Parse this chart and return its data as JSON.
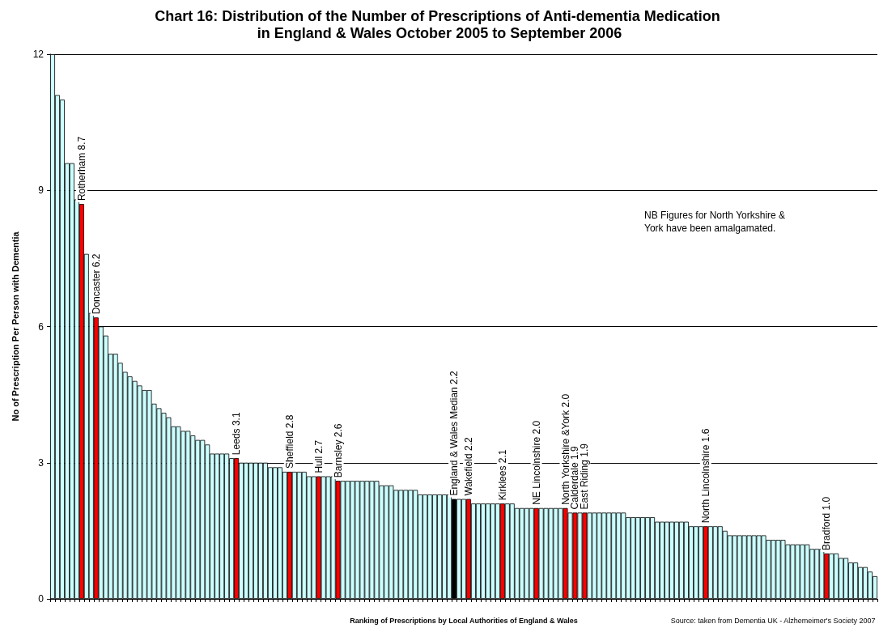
{
  "chart_data": {
    "type": "bar",
    "title": "Chart 16: Distribution of the Number of Prescriptions of Anti-dementia Medication in England & Wales October 2005 to September 2006",
    "xlabel": "Ranking of Prescriptions by Local Authorities of England & Wales",
    "ylabel": "No of Prescription Per Person with Dementia",
    "annotations": [
      "NB Figures for North Yorkshire & York have been amalgamated.",
      "Source: taken from Dementia UK - Alzhemeimer's Society 2007"
    ],
    "categories": [
      null,
      null,
      null,
      null,
      null,
      null,
      null,
      null,
      null,
      null,
      null,
      null,
      null,
      null,
      null,
      null,
      null,
      null,
      null,
      null,
      null,
      null,
      null,
      null,
      null,
      null,
      null,
      null,
      null,
      null,
      null,
      null,
      null,
      null,
      null,
      null,
      null,
      null,
      null,
      null,
      null,
      null,
      null,
      null,
      null,
      null,
      null,
      null,
      null,
      null,
      null,
      null,
      null,
      null,
      null,
      null,
      null,
      null,
      null,
      null,
      null,
      null,
      null,
      null,
      null,
      null,
      null,
      null,
      null,
      null,
      null,
      null,
      null,
      null,
      null,
      null,
      null,
      null,
      null,
      null,
      null,
      null,
      null,
      null,
      null,
      null,
      null,
      null,
      null,
      null,
      null,
      null,
      null,
      null,
      null,
      null,
      null,
      null,
      null,
      null,
      null,
      null,
      null,
      null,
      null,
      null,
      null,
      null,
      null,
      null,
      null,
      null,
      null,
      null,
      null,
      null,
      null,
      null,
      null,
      null,
      null,
      null,
      null,
      null,
      null,
      null,
      null,
      null,
      null,
      null,
      null,
      null,
      null,
      null,
      null,
      null,
      null,
      null,
      null,
      null,
      null,
      null,
      null,
      null,
      null,
      null,
      null,
      null,
      null,
      null,
      null,
      null,
      null,
      null,
      null,
      null,
      null,
      null,
      null,
      null,
      null,
      null,
      null,
      null,
      null,
      null,
      null,
      null,
      null,
      null,
      null
    ],
    "values": [
      12,
      11.1,
      11.0,
      9.6,
      9.6,
      8.8,
      8.7,
      7.6,
      6.3,
      6.2,
      6.0,
      5.8,
      5.4,
      5.4,
      5.2,
      5.0,
      4.9,
      4.8,
      4.7,
      4.6,
      4.6,
      4.3,
      4.2,
      4.1,
      4.0,
      3.8,
      3.8,
      3.7,
      3.7,
      3.6,
      3.5,
      3.5,
      3.4,
      3.2,
      3.2,
      3.2,
      3.2,
      3.1,
      3.1,
      3.0,
      3.0,
      3.0,
      3.0,
      3.0,
      3.0,
      2.9,
      2.9,
      2.9,
      2.8,
      2.8,
      2.8,
      2.8,
      2.8,
      2.7,
      2.7,
      2.7,
      2.7,
      2.7,
      2.7,
      2.6,
      2.6,
      2.6,
      2.6,
      2.6,
      2.6,
      2.6,
      2.6,
      2.6,
      2.5,
      2.5,
      2.5,
      2.4,
      2.4,
      2.4,
      2.4,
      2.4,
      2.3,
      2.3,
      2.3,
      2.3,
      2.3,
      2.3,
      2.3,
      2.2,
      2.2,
      2.2,
      2.2,
      2.1,
      2.1,
      2.1,
      2.1,
      2.1,
      2.1,
      2.1,
      2.1,
      2.1,
      2.0,
      2.0,
      2.0,
      2.0,
      2.0,
      2.0,
      2.0,
      2.0,
      2.0,
      2.0,
      2.0,
      1.9,
      1.9,
      1.9,
      1.9,
      1.9,
      1.9,
      1.9,
      1.9,
      1.9,
      1.9,
      1.9,
      1.9,
      1.8,
      1.8,
      1.8,
      1.8,
      1.8,
      1.8,
      1.7,
      1.7,
      1.7,
      1.7,
      1.7,
      1.7,
      1.7,
      1.6,
      1.6,
      1.6,
      1.6,
      1.6,
      1.6,
      1.6,
      1.5,
      1.4,
      1.4,
      1.4,
      1.4,
      1.4,
      1.4,
      1.4,
      1.4,
      1.3,
      1.3,
      1.3,
      1.3,
      1.2,
      1.2,
      1.2,
      1.2,
      1.2,
      1.1,
      1.1,
      1.1,
      1.0,
      1.0,
      1.0,
      0.9,
      0.9,
      0.8,
      0.8,
      0.7,
      0.7,
      0.6,
      0.5
    ],
    "colors": [
      "#ccffff",
      "#ccffff",
      "#ccffff",
      "#ccffff",
      "#ccffff",
      "#ccffff",
      "#ff0000",
      "#ccffff",
      "#ccffff",
      "#ff0000",
      "#ccffff",
      "#ccffff",
      "#ccffff",
      "#ccffff",
      "#ccffff",
      "#ccffff",
      "#ccffff",
      "#ccffff",
      "#ccffff",
      "#ccffff",
      "#ccffff",
      "#ccffff",
      "#ccffff",
      "#ccffff",
      "#ccffff",
      "#ccffff",
      "#ccffff",
      "#ccffff",
      "#ccffff",
      "#ccffff",
      "#ccffff",
      "#ccffff",
      "#ccffff",
      "#ccffff",
      "#ccffff",
      "#ccffff",
      "#ccffff",
      "#ccffff",
      "#ff0000",
      "#ccffff",
      "#ccffff",
      "#ccffff",
      "#ccffff",
      "#ccffff",
      "#ccffff",
      "#ccffff",
      "#ccffff",
      "#ccffff",
      "#ccffff",
      "#ff0000",
      "#ccffff",
      "#ccffff",
      "#ccffff",
      "#ccffff",
      "#ccffff",
      "#ff0000",
      "#ccffff",
      "#ccffff",
      "#ccffff",
      "#ff0000",
      "#ccffff",
      "#ccffff",
      "#ccffff",
      "#ccffff",
      "#ccffff",
      "#ccffff",
      "#ccffff",
      "#ccffff",
      "#ccffff",
      "#ccffff",
      "#ccffff",
      "#ccffff",
      "#ccffff",
      "#ccffff",
      "#ccffff",
      "#ccffff",
      "#ccffff",
      "#ccffff",
      "#ccffff",
      "#ccffff",
      "#ccffff",
      "#ccffff",
      "#ccffff",
      "#000000",
      "#ccffff",
      "#ccffff",
      "#ff0000",
      "#ccffff",
      "#ccffff",
      "#ccffff",
      "#ccffff",
      "#ccffff",
      "#ccffff",
      "#ff0000",
      "#ccffff",
      "#ccffff",
      "#ccffff",
      "#ccffff",
      "#ccffff",
      "#ccffff",
      "#ff0000",
      "#ccffff",
      "#ccffff",
      "#ccffff",
      "#ccffff",
      "#ccffff",
      "#ff0000",
      "#ccffff",
      "#ff0000",
      "#ccffff",
      "#ff0000",
      "#ccffff",
      "#ccffff",
      "#ccffff",
      "#ccffff",
      "#ccffff",
      "#ccffff",
      "#ccffff",
      "#ccffff",
      "#ccffff",
      "#ccffff",
      "#ccffff",
      "#ccffff",
      "#ccffff",
      "#ccffff",
      "#ccffff",
      "#ccffff",
      "#ccffff",
      "#ccffff",
      "#ccffff",
      "#ccffff",
      "#ccffff",
      "#ccffff",
      "#ccffff",
      "#ccffff",
      "#ff0000",
      "#ccffff",
      "#ccffff",
      "#ccffff",
      "#ccffff",
      "#ccffff",
      "#ccffff",
      "#ccffff",
      "#ccffff",
      "#ccffff",
      "#ccffff",
      "#ccffff",
      "#ccffff",
      "#ccffff",
      "#ccffff",
      "#ccffff",
      "#ccffff",
      "#ccffff",
      "#ccffff",
      "#ccffff",
      "#ccffff",
      "#ccffff",
      "#ccffff",
      "#ccffff",
      "#ccffff",
      "#ff0000",
      "#ccffff",
      "#ccffff",
      "#ccffff",
      "#ccffff",
      "#ccffff",
      "#ccffff",
      "#ccffff",
      "#ccffff",
      "#ccffff",
      "#ccffff"
    ],
    "value_labels": [
      null,
      null,
      null,
      null,
      null,
      null,
      "Rotherham 8.7",
      null,
      null,
      "Doncaster 6.2",
      null,
      null,
      null,
      null,
      null,
      null,
      null,
      null,
      null,
      null,
      null,
      null,
      null,
      null,
      null,
      null,
      null,
      null,
      null,
      null,
      null,
      null,
      null,
      null,
      null,
      null,
      null,
      null,
      "Leeds 3.1",
      null,
      null,
      null,
      null,
      null,
      null,
      null,
      null,
      null,
      null,
      "Sheffield 2.8",
      null,
      null,
      null,
      null,
      null,
      "Hull 2.7",
      null,
      null,
      null,
      "Barnsley 2.6",
      null,
      null,
      null,
      null,
      null,
      null,
      null,
      null,
      null,
      null,
      null,
      null,
      null,
      null,
      null,
      null,
      null,
      null,
      null,
      null,
      null,
      null,
      null,
      "England & Wales Median 2.2",
      null,
      null,
      "Wakefield 2.2",
      null,
      null,
      null,
      null,
      null,
      null,
      "Kirklees 2.1",
      null,
      null,
      null,
      null,
      null,
      null,
      "NE Lincolnshire 2.0",
      null,
      null,
      null,
      null,
      null,
      "North Yorkshire &York 2.0",
      null,
      "Calderdale 1.9",
      null,
      "East Riding 1.9",
      null,
      null,
      null,
      null,
      null,
      null,
      null,
      null,
      null,
      null,
      null,
      null,
      null,
      null,
      null,
      null,
      null,
      null,
      null,
      null,
      null,
      null,
      null,
      null,
      "North Lincolnshire 1.6",
      null,
      null,
      null,
      null,
      null,
      null,
      null,
      null,
      null,
      null,
      null,
      null,
      null,
      null,
      null,
      null,
      null,
      null,
      null,
      null,
      null,
      null,
      null,
      null,
      "Bradford 1.0",
      null,
      null,
      null,
      null,
      null,
      null,
      null,
      null,
      null,
      null
    ],
    "ylim": [
      0,
      12
    ],
    "yticks": [
      0,
      3,
      6,
      9,
      12
    ],
    "grid": "y"
  }
}
